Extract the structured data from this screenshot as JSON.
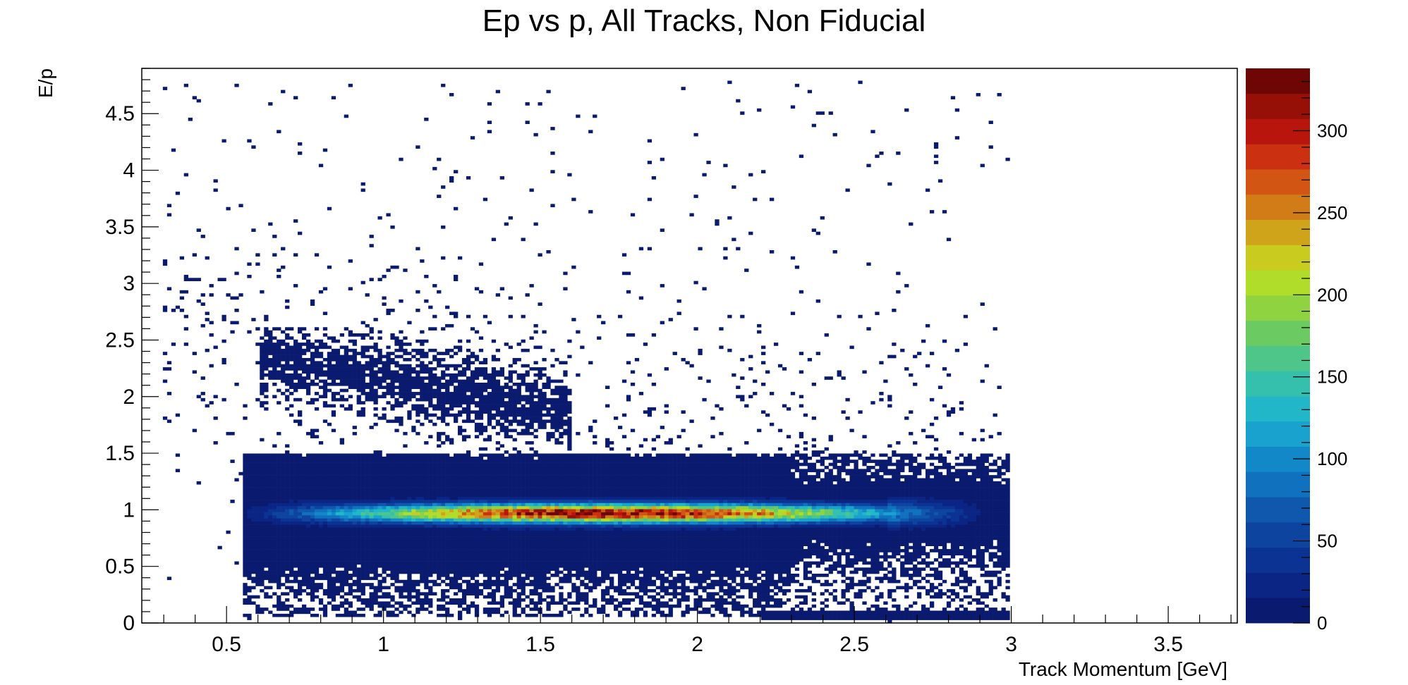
{
  "chart_data": {
    "type": "heatmap",
    "title": "Ep vs p, All Tracks, Non Fiducial",
    "xlabel": "Track Momentum [GeV]",
    "ylabel": "E/p",
    "xlim": [
      0.23,
      3.72
    ],
    "ylim": [
      0,
      4.9
    ],
    "x_ticks": [
      {
        "value": 0.5,
        "label": "0.5"
      },
      {
        "value": 1,
        "label": "1"
      },
      {
        "value": 1.5,
        "label": "1.5"
      },
      {
        "value": 2,
        "label": "2"
      },
      {
        "value": 2.5,
        "label": "2.5"
      },
      {
        "value": 3,
        "label": "3"
      },
      {
        "value": 3.5,
        "label": "3.5"
      }
    ],
    "y_ticks": [
      {
        "value": 0,
        "label": "0"
      },
      {
        "value": 0.5,
        "label": "0.5"
      },
      {
        "value": 1,
        "label": "1"
      },
      {
        "value": 1.5,
        "label": "1.5"
      },
      {
        "value": 2,
        "label": "2"
      },
      {
        "value": 2.5,
        "label": "2.5"
      },
      {
        "value": 3,
        "label": "3"
      },
      {
        "value": 3.5,
        "label": "3.5"
      },
      {
        "value": 4,
        "label": "4"
      },
      {
        "value": 4.5,
        "label": "4.5"
      }
    ],
    "z_range": [
      0,
      338
    ],
    "z_ticks": [
      {
        "value": 0,
        "label": "0"
      },
      {
        "value": 50,
        "label": "50"
      },
      {
        "value": 100,
        "label": "100"
      },
      {
        "value": 150,
        "label": "150"
      },
      {
        "value": 200,
        "label": "200"
      },
      {
        "value": 250,
        "label": "250"
      },
      {
        "value": 300,
        "label": "300"
      }
    ],
    "colorscale": [
      "#0a1a6e",
      "#0b2584",
      "#0b3394",
      "#0d449f",
      "#0f58ad",
      "#1072bf",
      "#1288c8",
      "#19a2cd",
      "#22b6c9",
      "#35c0ae",
      "#4ec68a",
      "#6bcb62",
      "#8fd440",
      "#b0dc2a",
      "#c9cc1e",
      "#cfa41b",
      "#d27c18",
      "#d25514",
      "#cb3010",
      "#b8150c",
      "#961008",
      "#6e0606"
    ],
    "grid": false,
    "legend": "colorbar-right",
    "regions": [
      {
        "name": "main band",
        "x_range": [
          0.55,
          3.05
        ],
        "y_center": 0.97,
        "y_sigma": 0.055,
        "peak_count": 320,
        "peak_x": 1.7
      },
      {
        "name": "lower diffuse region",
        "x_range": [
          0.55,
          3.0
        ],
        "y_range": [
          0.05,
          1.5
        ],
        "typical_count": 2
      },
      {
        "name": "upper diffuse region",
        "x_range": [
          0.6,
          1.6
        ],
        "y_range": [
          1.5,
          2.6
        ],
        "typical_count": 2
      },
      {
        "name": "low E/p strip",
        "x_range": [
          2.2,
          3.0
        ],
        "y_center": 0.06,
        "typical_count": 3
      }
    ]
  }
}
